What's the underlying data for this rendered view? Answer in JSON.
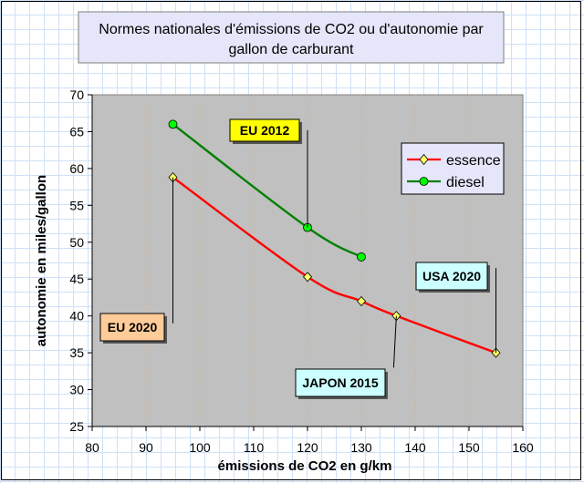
{
  "chart_data": {
    "type": "line",
    "title": [
      "Normes nationales d'émissions de CO2 ou d'autonomie par",
      "gallon de carburant"
    ],
    "xlabel": "émissions de CO2 en g/km",
    "ylabel": "autonomie en miles/gallon",
    "xlim": [
      80,
      160
    ],
    "ylim": [
      25,
      70
    ],
    "xticks": [
      "80",
      "90",
      "100",
      "110",
      "120",
      "130",
      "140",
      "150",
      "160"
    ],
    "yticks": [
      "25",
      "30",
      "35",
      "40",
      "45",
      "50",
      "55",
      "60",
      "65",
      "70"
    ],
    "vertical_gridlines": true,
    "legend_position": "right",
    "series": [
      {
        "name": "essence",
        "color": "#ff0000",
        "marker": "diamond",
        "marker_color": "#ffff66",
        "points": [
          [
            95,
            58.8
          ],
          [
            120,
            45.3
          ],
          [
            130,
            42
          ],
          [
            136.5,
            40
          ],
          [
            155,
            35
          ]
        ]
      },
      {
        "name": "diesel",
        "color": "#008000",
        "marker": "circle",
        "marker_color": "#00ff00",
        "points": [
          [
            95,
            66
          ],
          [
            120,
            52
          ],
          [
            130,
            48
          ]
        ]
      }
    ],
    "annotations": [
      {
        "text": "EU 2012",
        "bg": "#ffff00",
        "pointer": [
          [
            120,
            65.2
          ],
          [
            120,
            52
          ]
        ]
      },
      {
        "text": "EU 2020",
        "bg": "#ffcc99",
        "pointer": [
          [
            95,
            39
          ],
          [
            95,
            58.8
          ]
        ]
      },
      {
        "text": "USA 2020",
        "bg": "#ccffff",
        "pointer": [
          [
            155,
            46.5
          ],
          [
            155,
            35
          ]
        ]
      },
      {
        "text": "JAPON 2015",
        "bg": "#ccffff",
        "pointer": [
          [
            136,
            33
          ],
          [
            136.5,
            40
          ]
        ]
      }
    ]
  }
}
